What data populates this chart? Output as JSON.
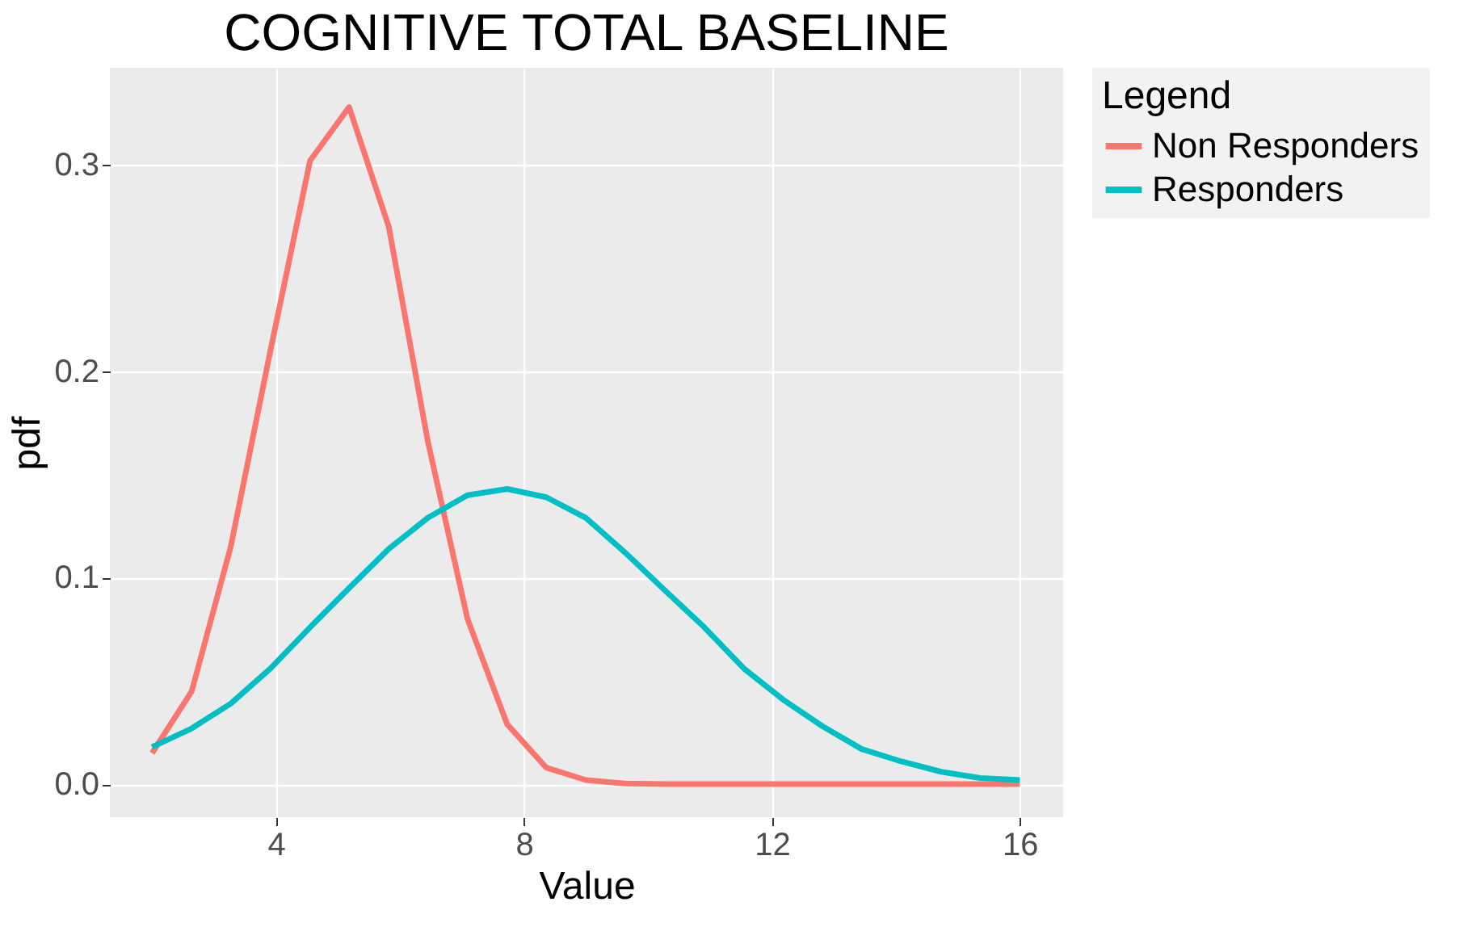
{
  "chart_data": {
    "type": "line",
    "title": "COGNITIVE TOTAL BASELINE",
    "xlabel": "Value",
    "ylabel": "pdf",
    "legend_title": "Legend",
    "x": [
      2,
      2.64,
      3.27,
      3.91,
      4.55,
      5.18,
      5.82,
      6.45,
      7.09,
      7.73,
      8.36,
      9,
      9.64,
      10.27,
      10.91,
      11.55,
      12.18,
      12.82,
      13.45,
      14.09,
      14.73,
      15.36,
      16
    ],
    "series": [
      {
        "name": "Non Responders",
        "color": "#f8766d",
        "values": [
          0.015,
          0.045,
          0.115,
          0.21,
          0.302,
          0.328,
          0.27,
          0.166,
          0.08,
          0.029,
          0.008,
          0.002,
          0.0003,
          0,
          0,
          0,
          0,
          0,
          0,
          0,
          0,
          0,
          0
        ]
      },
      {
        "name": "Responders",
        "color": "#00bfc4",
        "values": [
          0.018,
          0.027,
          0.039,
          0.056,
          0.076,
          0.095,
          0.114,
          0.129,
          0.14,
          0.143,
          0.139,
          0.129,
          0.112,
          0.094,
          0.076,
          0.056,
          0.041,
          0.028,
          0.017,
          0.011,
          0.006,
          0.003,
          0.002
        ]
      }
    ],
    "xlim": [
      1.32,
      16.7
    ],
    "xticks": [
      4,
      8,
      12,
      16
    ],
    "ylim": [
      -0.016,
      0.347
    ],
    "yticks": [
      {
        "value": 0,
        "label": "0.0"
      },
      0.1,
      0.2,
      0.3
    ],
    "grid": true,
    "legend": "right",
    "marker": "none",
    "line_style": "solid"
  }
}
